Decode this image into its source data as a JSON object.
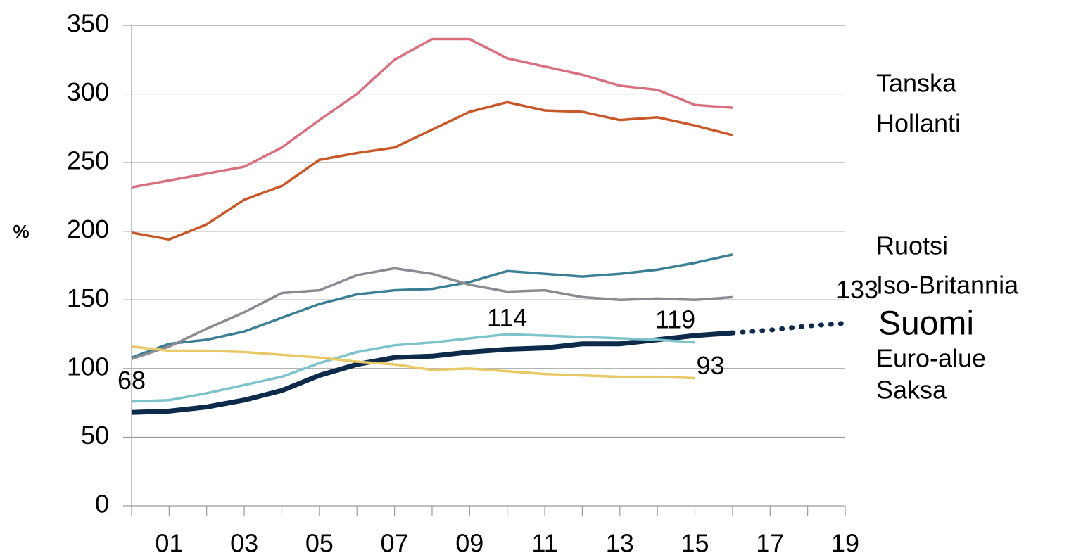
{
  "chart_data": {
    "type": "line",
    "y_label": "%",
    "categories": [
      null,
      "01",
      null,
      "03",
      null,
      "05",
      null,
      "07",
      null,
      "09",
      null,
      "11",
      null,
      "13",
      null,
      "15",
      null,
      "17",
      null,
      "19"
    ],
    "ylim": [
      0,
      350
    ],
    "yticks": [
      0,
      50,
      100,
      150,
      200,
      250,
      300,
      350
    ],
    "grid": true,
    "series": [
      {
        "name": "Tanska",
        "color": "#d9707f",
        "values": [
          232,
          237,
          242,
          247,
          261,
          281,
          300,
          325,
          340,
          340,
          326,
          320,
          314,
          306,
          303,
          292,
          290,
          null,
          null,
          null
        ]
      },
      {
        "name": "Hollanti",
        "color": "#c8582a",
        "values": [
          199,
          194,
          205,
          223,
          233,
          252,
          257,
          261,
          274,
          287,
          294,
          288,
          287,
          281,
          283,
          277,
          270,
          null,
          null,
          null
        ]
      },
      {
        "name": "Ruotsi",
        "color": "#3b7f94",
        "values": [
          108,
          118,
          121,
          127,
          137,
          147,
          154,
          157,
          158,
          163,
          171,
          169,
          167,
          169,
          172,
          177,
          183,
          null,
          null,
          null
        ]
      },
      {
        "name": "Iso-Britannia",
        "color": "#8a8a93",
        "values": [
          107,
          116,
          129,
          141,
          155,
          157,
          168,
          173,
          169,
          161,
          156,
          157,
          152,
          150,
          151,
          150,
          152,
          null,
          null,
          null
        ]
      },
      {
        "name": "Suomi",
        "color": "#0d2a4a",
        "values": [
          68,
          69,
          72,
          77,
          84,
          95,
          103,
          108,
          109,
          112,
          114,
          115,
          118,
          118,
          121,
          124,
          126,
          null,
          null,
          null
        ],
        "value_labels": [
          "68",
          null,
          null,
          null,
          null,
          null,
          null,
          null,
          null,
          null,
          "114",
          null,
          null,
          null,
          null,
          null,
          null,
          null,
          null,
          null
        ],
        "projection_values": [
          null,
          null,
          null,
          null,
          null,
          null,
          null,
          null,
          null,
          null,
          null,
          null,
          null,
          null,
          null,
          null,
          126,
          128,
          131,
          133
        ],
        "projection_value_labels": [
          null,
          null,
          null,
          null,
          null,
          null,
          null,
          null,
          null,
          null,
          null,
          null,
          null,
          null,
          null,
          null,
          null,
          null,
          null,
          "133"
        ]
      },
      {
        "name": "Euro-alue",
        "color": "#7cc3cc",
        "values": [
          76,
          77,
          82,
          88,
          94,
          104,
          112,
          117,
          119,
          122,
          125,
          124,
          123,
          122,
          121,
          119,
          null,
          null,
          null,
          null
        ],
        "value_labels": [
          null,
          null,
          null,
          null,
          null,
          null,
          null,
          null,
          null,
          null,
          null,
          null,
          null,
          null,
          null,
          "119",
          null,
          null,
          null,
          null
        ]
      },
      {
        "name": "Saksa",
        "color": "#e9c866",
        "values": [
          116,
          113,
          113,
          112,
          110,
          108,
          105,
          103,
          99,
          100,
          98,
          96,
          95,
          94,
          94,
          93,
          null,
          null,
          null,
          null
        ],
        "value_labels": [
          null,
          null,
          null,
          null,
          null,
          null,
          null,
          null,
          null,
          null,
          null,
          null,
          null,
          null,
          null,
          "93",
          null,
          null,
          null,
          null
        ]
      }
    ]
  }
}
